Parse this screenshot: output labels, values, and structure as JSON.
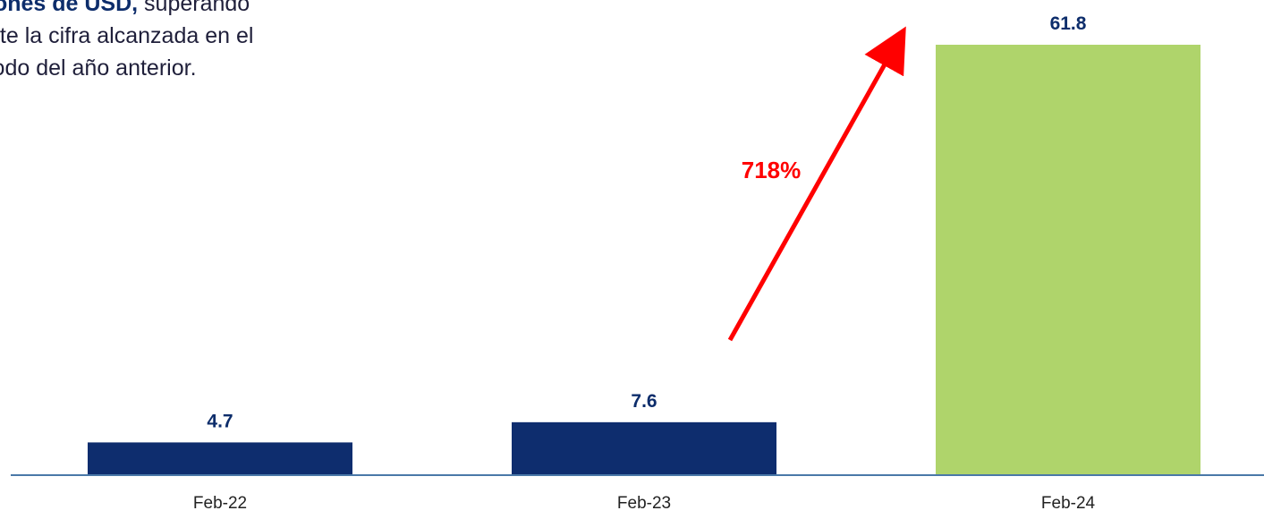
{
  "intro_text": {
    "line1_bold": "iones de USD,",
    "line1_rest": " superando",
    "line2": "nte la cifra alcanzada en el",
    "line3": "iodo del  año anterior."
  },
  "growth_annotation": "718%",
  "chart_data": {
    "type": "bar",
    "categories": [
      "Feb-22",
      "Feb-23",
      "Feb-24"
    ],
    "values": [
      4.7,
      7.6,
      61.8
    ],
    "value_labels": [
      "4.7",
      "7.6",
      "61.8"
    ],
    "colors": [
      "#0e2d6e",
      "#0e2d6e",
      "#afd46b"
    ],
    "ylim": [
      0,
      61.8
    ],
    "grid": false,
    "axis_color": "#4a78a8",
    "arrow_color": "#ff0000"
  }
}
